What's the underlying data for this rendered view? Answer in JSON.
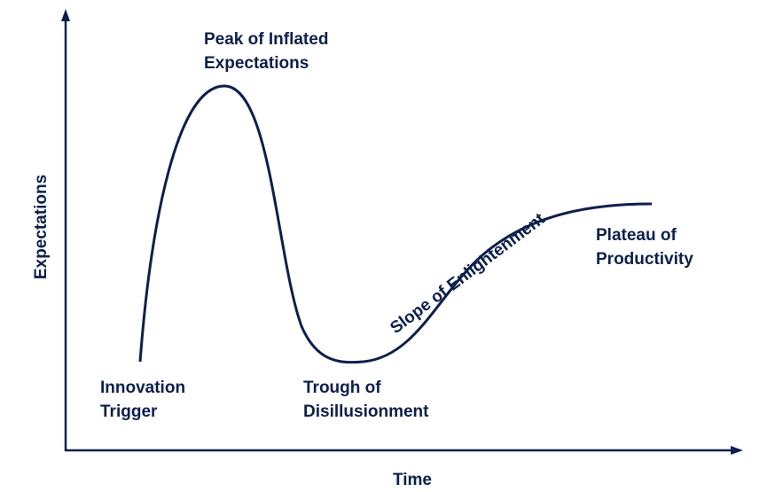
{
  "axes": {
    "y_label": "Expectations",
    "x_label": "Time"
  },
  "stages": [
    {
      "lines": [
        "Innovation",
        "Trigger"
      ]
    },
    {
      "lines": [
        "Peak of Inflated",
        "Expectations"
      ]
    },
    {
      "lines": [
        "Trough of",
        "Disillusionment"
      ]
    },
    {
      "lines": [
        "Slope of Enlightenment"
      ]
    },
    {
      "lines": [
        "Plateau of",
        "Productivity"
      ]
    }
  ]
}
